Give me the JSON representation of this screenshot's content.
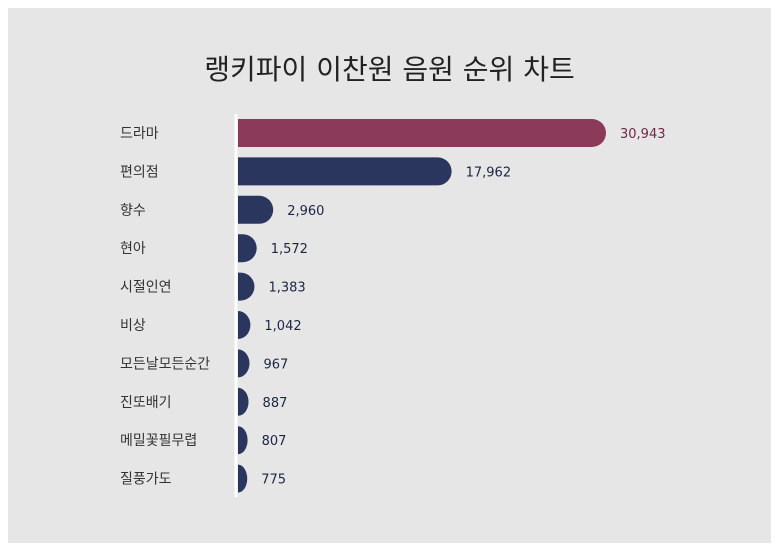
{
  "title": "랭키파이 이찬원 음원 순위 차트",
  "chart_data": {
    "type": "bar",
    "orientation": "horizontal",
    "categories": [
      "드라마",
      "편의점",
      "향수",
      "현아",
      "시절인연",
      "비상",
      "모든날모든순간",
      "진또배기",
      "메밀꽃필무렵",
      "질풍가도"
    ],
    "values": [
      30943,
      17962,
      2960,
      1572,
      1383,
      1042,
      967,
      887,
      807,
      775
    ],
    "value_labels": [
      "30,943",
      "17,962",
      "2,960",
      "1,572",
      "1,383",
      "1,042",
      "967",
      "887",
      "807",
      "775"
    ],
    "highlight_index": 0,
    "colors": {
      "highlight": "#8b3a5a",
      "bar": "#2a365e",
      "highlight_label": "#6e2a45",
      "label": "#1c2645"
    },
    "grid": false,
    "legend": "none"
  }
}
